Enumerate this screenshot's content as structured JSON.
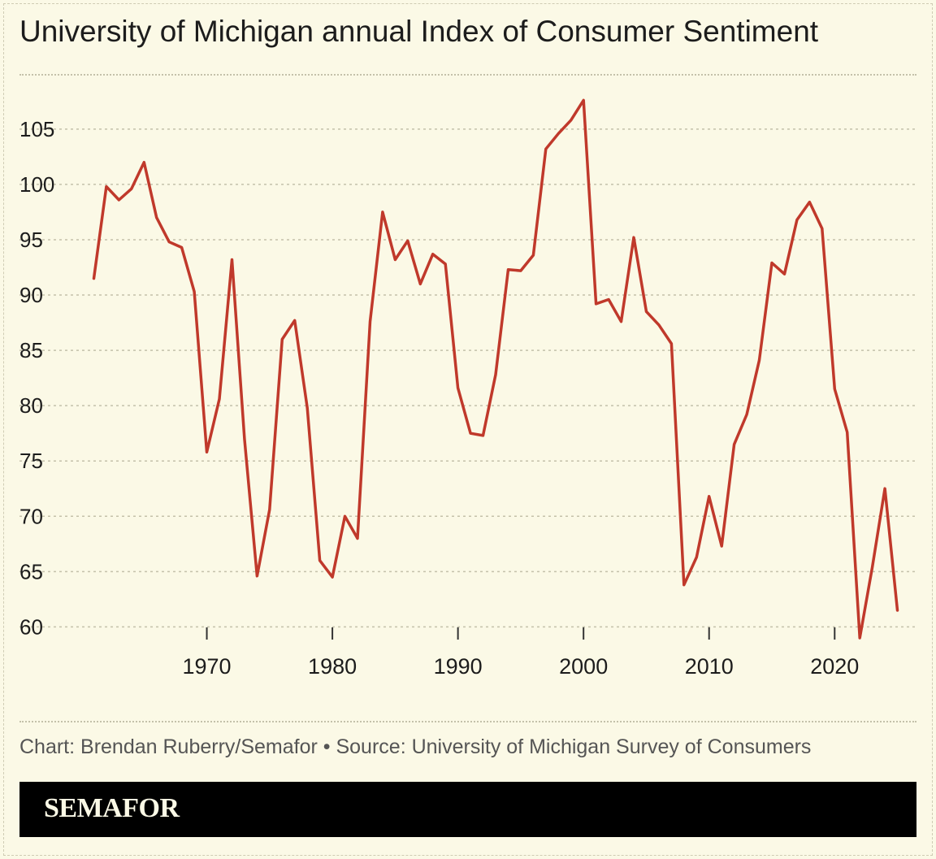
{
  "title": "University of Michigan annual Index of Consumer Sentiment",
  "credit": "Chart: Brendan Ruberry/Semafor • Source: University of Michigan Survey of Consumers",
  "brand": "SEMAFOR",
  "colors": {
    "line": "#c0392b",
    "background": "#fbf9e6",
    "grid": "#c4c1aa",
    "text": "#1c1c1c"
  },
  "chart_data": {
    "type": "line",
    "title": "University of Michigan annual Index of Consumer Sentiment",
    "xlabel": "",
    "ylabel": "",
    "xlim": [
      1960,
      2026
    ],
    "ylim": [
      59,
      108
    ],
    "yticks": [
      60,
      65,
      70,
      75,
      80,
      85,
      90,
      95,
      100,
      105
    ],
    "xticks": [
      1970,
      1980,
      1990,
      2000,
      2010,
      2020
    ],
    "grid": true,
    "series": [
      {
        "name": "Index of Consumer Sentiment",
        "x": [
          1961,
          1962,
          1963,
          1964,
          1965,
          1966,
          1967,
          1968,
          1969,
          1970,
          1971,
          1972,
          1973,
          1974,
          1975,
          1976,
          1977,
          1978,
          1979,
          1980,
          1981,
          1982,
          1983,
          1984,
          1985,
          1986,
          1987,
          1988,
          1989,
          1990,
          1991,
          1992,
          1993,
          1994,
          1995,
          1996,
          1997,
          1998,
          1999,
          2000,
          2001,
          2002,
          2003,
          2004,
          2005,
          2006,
          2007,
          2008,
          2009,
          2010,
          2011,
          2012,
          2013,
          2014,
          2015,
          2016,
          2017,
          2018,
          2019,
          2020,
          2021,
          2022,
          2023,
          2024,
          2025
        ],
        "values": [
          91.5,
          99.8,
          98.6,
          99.6,
          102.0,
          97.0,
          94.8,
          94.3,
          90.3,
          75.8,
          80.6,
          93.2,
          77.0,
          64.6,
          70.6,
          86.0,
          87.7,
          79.8,
          66.0,
          64.5,
          70.0,
          68.0,
          87.6,
          97.5,
          93.2,
          94.9,
          91.0,
          93.7,
          92.8,
          81.6,
          77.5,
          77.3,
          82.8,
          92.3,
          92.2,
          93.6,
          103.2,
          104.6,
          105.8,
          107.6,
          89.2,
          89.6,
          87.6,
          95.2,
          88.5,
          87.3,
          85.6,
          63.8,
          66.3,
          71.8,
          67.3,
          76.5,
          79.2,
          84.1,
          92.9,
          91.9,
          96.8,
          98.4,
          96.0,
          81.5,
          77.6,
          59.0,
          65.4,
          72.5,
          61.5
        ]
      }
    ]
  }
}
